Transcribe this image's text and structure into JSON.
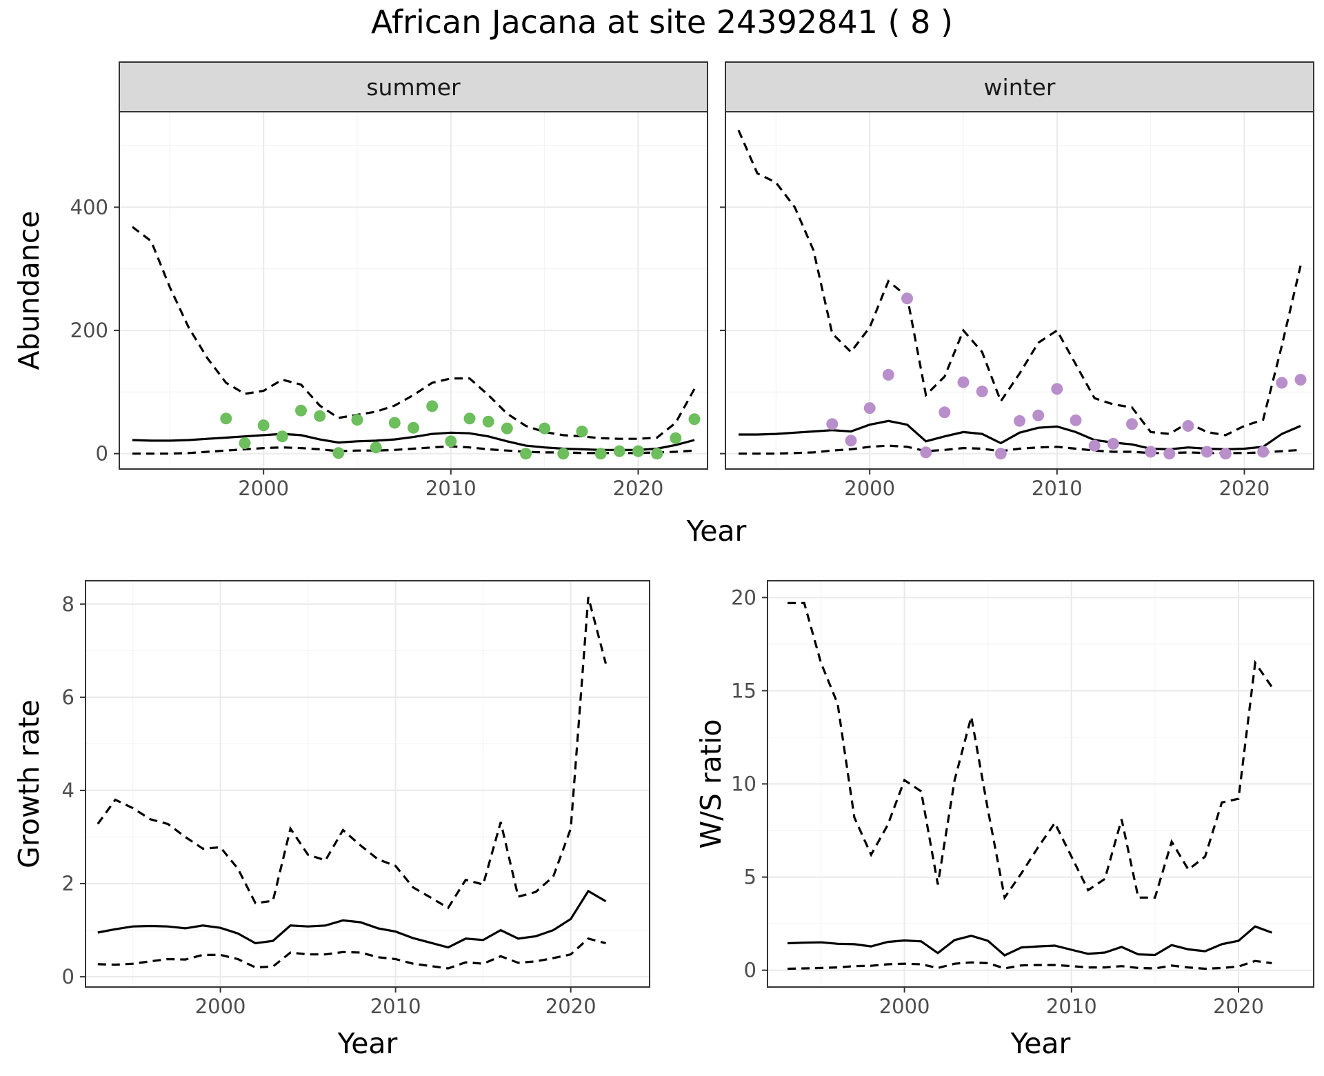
{
  "title": "African Jacana at site 24392841 ( 8 )",
  "colors": {
    "summer_points": "#6dbe5c",
    "winter_points": "#b98fcb",
    "lines": "#000000"
  },
  "chart_data": [
    {
      "type": "line",
      "facets": [
        "summer",
        "winter"
      ],
      "xlabel": "Year",
      "ylabel": "Abundance",
      "xlim": [
        1992.3,
        2023.7
      ],
      "ylim": [
        -25,
        555
      ],
      "x_ticks": [
        2000,
        2010,
        2020
      ],
      "y_ticks": [
        0,
        200,
        400
      ],
      "grid": true,
      "panels": [
        {
          "name": "summer",
          "x": [
            1993,
            1994,
            1995,
            1996,
            1997,
            1998,
            1999,
            2000,
            2001,
            2002,
            2003,
            2004,
            2005,
            2006,
            2007,
            2008,
            2009,
            2010,
            2011,
            2012,
            2013,
            2014,
            2015,
            2016,
            2017,
            2018,
            2019,
            2020,
            2021,
            2022,
            2023
          ],
          "mean": [
            22,
            21,
            21,
            22,
            24,
            26,
            28,
            30,
            32,
            30,
            23,
            18,
            20,
            21,
            23,
            27,
            32,
            34,
            33,
            28,
            20,
            13,
            10,
            8,
            7,
            6,
            6,
            6,
            8,
            14,
            22
          ],
          "upper": [
            368,
            345,
            270,
            205,
            155,
            115,
            97,
            102,
            120,
            112,
            78,
            58,
            63,
            68,
            78,
            95,
            115,
            122,
            122,
            95,
            65,
            45,
            35,
            30,
            28,
            25,
            24,
            24,
            26,
            50,
            105
          ],
          "lower": [
            0,
            0,
            0,
            1,
            3,
            5,
            7,
            9,
            10,
            9,
            7,
            4,
            5,
            5,
            6,
            8,
            10,
            12,
            10,
            7,
            5,
            3,
            2,
            2,
            1,
            1,
            1,
            1,
            2,
            3,
            5
          ],
          "points": {
            "x": [
              1998,
              1999,
              2000,
              2001,
              2002,
              2003,
              2004,
              2005,
              2006,
              2007,
              2008,
              2009,
              2010,
              2011,
              2012,
              2013,
              2014,
              2015,
              2016,
              2017,
              2018,
              2019,
              2020,
              2021,
              2022,
              2023
            ],
            "y": [
              57,
              17,
              46,
              28,
              70,
              61,
              1,
              55,
              10,
              50,
              42,
              77,
              20,
              57,
              52,
              41,
              0,
              41,
              0,
              36,
              0,
              4,
              4,
              0,
              25,
              56
            ]
          }
        },
        {
          "name": "winter",
          "x": [
            1993,
            1994,
            1995,
            1996,
            1997,
            1998,
            1999,
            2000,
            2001,
            2002,
            2003,
            2004,
            2005,
            2006,
            2007,
            2008,
            2009,
            2010,
            2011,
            2012,
            2013,
            2014,
            2015,
            2016,
            2017,
            2018,
            2019,
            2020,
            2021,
            2022,
            2023
          ],
          "mean": [
            31,
            31,
            32,
            34,
            36,
            38,
            36,
            47,
            53,
            47,
            20,
            28,
            35,
            32,
            17,
            34,
            42,
            44,
            35,
            22,
            18,
            15,
            8,
            7,
            10,
            8,
            7,
            8,
            11,
            32,
            45
          ],
          "upper": [
            525,
            455,
            440,
            400,
            330,
            195,
            165,
            205,
            280,
            255,
            95,
            125,
            200,
            165,
            85,
            130,
            180,
            200,
            145,
            90,
            80,
            75,
            35,
            32,
            50,
            35,
            30,
            45,
            55,
            175,
            305
          ],
          "lower": [
            0,
            0,
            0,
            1,
            2,
            5,
            7,
            11,
            13,
            11,
            4,
            6,
            9,
            8,
            4,
            8,
            10,
            11,
            8,
            5,
            3,
            3,
            1,
            1,
            2,
            1,
            1,
            1,
            2,
            4,
            6
          ],
          "points": {
            "x": [
              1998,
              1999,
              2000,
              2001,
              2002,
              2003,
              2004,
              2005,
              2006,
              2007,
              2008,
              2009,
              2010,
              2011,
              2012,
              2013,
              2014,
              2015,
              2016,
              2017,
              2018,
              2019,
              2020,
              2021,
              2022,
              2023
            ],
            "y": [
              48,
              21,
              74,
              128,
              252,
              2,
              67,
              116,
              101,
              0,
              53,
              62,
              105,
              54,
              13,
              16,
              48,
              3,
              0,
              45,
              3,
              0,
              null,
              3,
              115,
              120
            ]
          }
        }
      ]
    },
    {
      "type": "line",
      "xlabel": "Year",
      "ylabel": "Growth rate",
      "xlim": [
        1992.3,
        2024.5
      ],
      "ylim": [
        -0.22,
        8.5
      ],
      "x_ticks": [
        2000,
        2010,
        2020
      ],
      "y_ticks": [
        0,
        2,
        4,
        6,
        8
      ],
      "grid": true,
      "x": [
        1993,
        1994,
        1995,
        1996,
        1997,
        1998,
        1999,
        2000,
        2001,
        2002,
        2003,
        2004,
        2005,
        2006,
        2007,
        2008,
        2009,
        2010,
        2011,
        2012,
        2013,
        2014,
        2015,
        2016,
        2017,
        2018,
        2019,
        2020,
        2021,
        2022
      ],
      "mean": [
        0.95,
        1.02,
        1.08,
        1.09,
        1.08,
        1.04,
        1.1,
        1.05,
        0.93,
        0.72,
        0.77,
        1.1,
        1.08,
        1.1,
        1.21,
        1.17,
        1.04,
        0.97,
        0.83,
        0.73,
        0.63,
        0.82,
        0.79,
        1.0,
        0.82,
        0.87,
        1.0,
        1.24,
        1.84,
        1.62
      ],
      "upper": [
        3.28,
        3.8,
        3.62,
        3.38,
        3.28,
        3.0,
        2.75,
        2.78,
        2.32,
        1.58,
        1.63,
        3.18,
        2.62,
        2.5,
        3.15,
        2.82,
        2.52,
        2.38,
        1.92,
        1.7,
        1.48,
        2.08,
        1.98,
        3.32,
        1.72,
        1.82,
        2.15,
        3.18,
        8.15,
        6.72
      ],
      "lower": [
        0.27,
        0.26,
        0.28,
        0.33,
        0.38,
        0.37,
        0.47,
        0.47,
        0.38,
        0.2,
        0.22,
        0.52,
        0.48,
        0.48,
        0.53,
        0.52,
        0.42,
        0.38,
        0.28,
        0.23,
        0.18,
        0.31,
        0.28,
        0.44,
        0.3,
        0.33,
        0.4,
        0.48,
        0.82,
        0.72
      ]
    },
    {
      "type": "line",
      "xlabel": "Year",
      "ylabel": "W/S ratio",
      "xlim": [
        1991.8,
        2024.5
      ],
      "ylim": [
        -0.9,
        20.9
      ],
      "x_ticks": [
        2000,
        2010,
        2020
      ],
      "y_ticks": [
        0,
        5,
        10,
        15,
        20
      ],
      "grid": true,
      "x": [
        1993,
        1994,
        1995,
        1996,
        1997,
        1998,
        1999,
        2000,
        2001,
        2002,
        2003,
        2004,
        2005,
        2006,
        2007,
        2008,
        2009,
        2010,
        2011,
        2012,
        2013,
        2014,
        2015,
        2016,
        2017,
        2018,
        2019,
        2020,
        2021,
        2022
      ],
      "mean": [
        1.45,
        1.48,
        1.5,
        1.42,
        1.4,
        1.28,
        1.52,
        1.6,
        1.55,
        0.92,
        1.62,
        1.85,
        1.58,
        0.8,
        1.22,
        1.28,
        1.32,
        1.1,
        0.88,
        0.95,
        1.25,
        0.85,
        0.82,
        1.35,
        1.12,
        1.02,
        1.4,
        1.58,
        2.35,
        2.02
      ],
      "upper": [
        19.7,
        19.7,
        16.5,
        14.3,
        8.2,
        6.2,
        7.8,
        10.2,
        9.6,
        4.6,
        10.2,
        13.6,
        8.6,
        3.9,
        5.2,
        6.6,
        7.9,
        6.1,
        4.3,
        4.9,
        8.1,
        3.9,
        3.9,
        6.9,
        5.4,
        6.1,
        9.0,
        9.2,
        16.5,
        15.2
      ],
      "lower": [
        0.08,
        0.1,
        0.12,
        0.15,
        0.22,
        0.24,
        0.32,
        0.35,
        0.32,
        0.12,
        0.35,
        0.42,
        0.38,
        0.1,
        0.26,
        0.28,
        0.28,
        0.22,
        0.15,
        0.15,
        0.22,
        0.12,
        0.1,
        0.25,
        0.15,
        0.08,
        0.12,
        0.2,
        0.5,
        0.38
      ]
    }
  ]
}
